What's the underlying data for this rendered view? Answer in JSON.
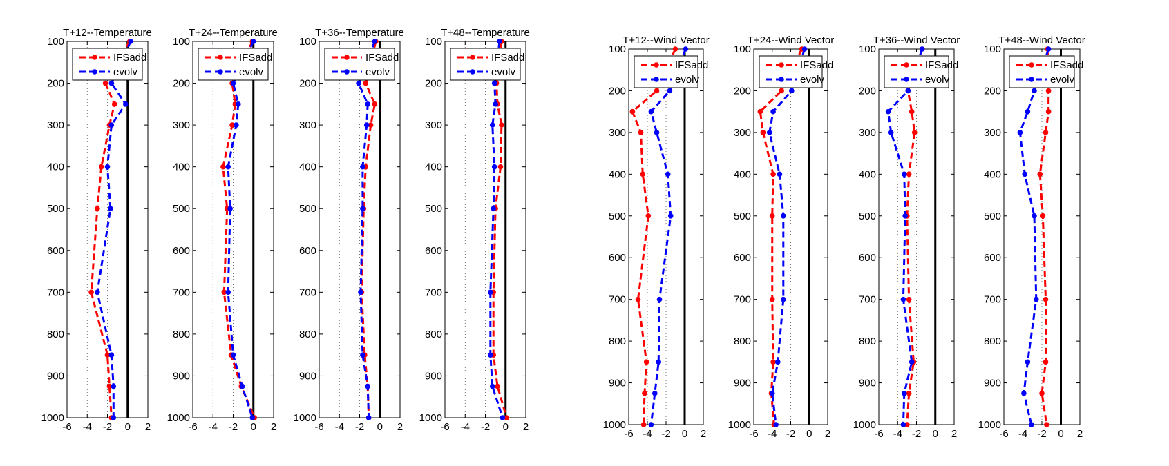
{
  "figure": {
    "background": "#ffffff",
    "colors": {
      "IFSadd": "#ff0000",
      "evolv": "#0000ff",
      "axis": "#000000",
      "grid": "#555555"
    },
    "line_style": "dashed",
    "marker": "filled-circle",
    "reference_line": 0
  },
  "chart_data": [
    {
      "type": "line",
      "title": "T+12--Temperature",
      "xlim": [
        -6,
        2
      ],
      "xticks": [
        -6,
        -4,
        -2,
        0,
        2
      ],
      "ylim": [
        100,
        1000
      ],
      "y_reversed": true,
      "yticks": [
        100,
        200,
        300,
        400,
        500,
        600,
        700,
        800,
        900,
        1000
      ],
      "legend_position": "top",
      "y": [
        100,
        200,
        250,
        300,
        400,
        500,
        700,
        850,
        925,
        1000
      ],
      "series": [
        {
          "name": "IFSadd",
          "color": "#ff0000",
          "values": [
            0.2,
            -2.2,
            -1.3,
            -1.8,
            -2.6,
            -3.0,
            -3.6,
            -2.0,
            -1.8,
            -1.6
          ]
        },
        {
          "name": "evolv",
          "color": "#0000ff",
          "values": [
            0.3,
            -1.6,
            -0.2,
            -1.6,
            -2.0,
            -1.7,
            -3.0,
            -1.6,
            -1.4,
            -1.4
          ]
        }
      ]
    },
    {
      "type": "line",
      "title": "T+24--Temperature",
      "xlim": [
        -6,
        2
      ],
      "xticks": [
        -6,
        -4,
        -2,
        0,
        2
      ],
      "ylim": [
        100,
        1000
      ],
      "y_reversed": true,
      "yticks": [
        100,
        200,
        300,
        400,
        500,
        600,
        700,
        800,
        900,
        1000
      ],
      "legend_position": "top",
      "y": [
        100,
        200,
        250,
        300,
        400,
        500,
        700,
        850,
        925,
        1000
      ],
      "series": [
        {
          "name": "IFSadd",
          "color": "#ff0000",
          "values": [
            -0.1,
            -2.1,
            -1.8,
            -2.1,
            -3.0,
            -2.6,
            -2.9,
            -2.2,
            -1.2,
            0.1
          ]
        },
        {
          "name": "evolv",
          "color": "#0000ff",
          "values": [
            0.0,
            -2.0,
            -1.5,
            -1.7,
            -2.5,
            -2.3,
            -2.5,
            -2.0,
            -1.1,
            -0.1
          ]
        }
      ]
    },
    {
      "type": "line",
      "title": "T+36--Temperature",
      "xlim": [
        -6,
        2
      ],
      "xticks": [
        -6,
        -4,
        -2,
        0,
        2
      ],
      "ylim": [
        100,
        1000
      ],
      "y_reversed": true,
      "yticks": [
        100,
        200,
        300,
        400,
        500,
        600,
        700,
        800,
        900,
        1000
      ],
      "legend_position": "top",
      "y": [
        100,
        200,
        250,
        300,
        400,
        500,
        700,
        850,
        925,
        1000
      ],
      "series": [
        {
          "name": "IFSadd",
          "color": "#ff0000",
          "values": [
            -0.4,
            -1.4,
            -0.5,
            -0.9,
            -1.4,
            -1.6,
            -1.8,
            -1.5,
            -1.2,
            -1.1
          ]
        },
        {
          "name": "evolv",
          "color": "#0000ff",
          "values": [
            -0.5,
            -2.1,
            -1.2,
            -1.3,
            -1.7,
            -1.7,
            -1.9,
            -1.7,
            -1.2,
            -1.1
          ]
        }
      ]
    },
    {
      "type": "line",
      "title": "T+48--Temperature",
      "xlim": [
        -6,
        2
      ],
      "xticks": [
        -6,
        -4,
        -2,
        0,
        2
      ],
      "ylim": [
        100,
        1000
      ],
      "y_reversed": true,
      "yticks": [
        100,
        200,
        300,
        400,
        500,
        600,
        700,
        800,
        900,
        1000
      ],
      "legend_position": "top",
      "y": [
        100,
        200,
        250,
        300,
        400,
        500,
        700,
        850,
        925,
        1000
      ],
      "series": [
        {
          "name": "IFSadd",
          "color": "#ff0000",
          "values": [
            -0.4,
            -0.9,
            -0.8,
            -0.4,
            -0.5,
            -1.0,
            -1.2,
            -1.2,
            -0.8,
            0.1
          ]
        },
        {
          "name": "evolv",
          "color": "#0000ff",
          "values": [
            -0.6,
            -1.1,
            -1.0,
            -1.3,
            -1.1,
            -1.2,
            -1.5,
            -1.5,
            -1.3,
            -0.3
          ]
        }
      ]
    },
    {
      "type": "line",
      "title": "T+12--Wind Vector",
      "xlim": [
        -6,
        2
      ],
      "xticks": [
        -6,
        -4,
        -2,
        0,
        2
      ],
      "ylim": [
        100,
        1000
      ],
      "y_reversed": true,
      "yticks": [
        100,
        200,
        300,
        400,
        500,
        600,
        700,
        800,
        900,
        1000
      ],
      "legend_position": "top",
      "y": [
        100,
        200,
        250,
        300,
        400,
        500,
        700,
        850,
        925,
        1000
      ],
      "series": [
        {
          "name": "IFSadd",
          "color": "#ff0000",
          "values": [
            -1.0,
            -3.0,
            -5.6,
            -4.7,
            -4.5,
            -3.9,
            -5.0,
            -4.1,
            -4.3,
            -4.4
          ]
        },
        {
          "name": "evolv",
          "color": "#0000ff",
          "values": [
            0.1,
            -1.6,
            -3.6,
            -3.0,
            -1.8,
            -1.5,
            -2.7,
            -2.8,
            -3.2,
            -3.6
          ]
        }
      ]
    },
    {
      "type": "line",
      "title": "T+24--Wind Vector",
      "xlim": [
        -6,
        2
      ],
      "xticks": [
        -6,
        -4,
        -2,
        0,
        2
      ],
      "ylim": [
        100,
        1000
      ],
      "y_reversed": true,
      "yticks": [
        100,
        200,
        300,
        400,
        500,
        600,
        700,
        800,
        900,
        1000
      ],
      "legend_position": "top",
      "y": [
        100,
        200,
        250,
        300,
        400,
        500,
        700,
        850,
        925,
        1000
      ],
      "series": [
        {
          "name": "IFSadd",
          "color": "#ff0000",
          "values": [
            -0.8,
            -3.0,
            -5.3,
            -5.0,
            -3.9,
            -4.0,
            -4.0,
            -3.9,
            -4.1,
            -3.8
          ]
        },
        {
          "name": "evolv",
          "color": "#0000ff",
          "values": [
            -0.5,
            -1.9,
            -3.9,
            -4.3,
            -3.2,
            -2.8,
            -2.8,
            -3.4,
            -4.0,
            -3.6
          ]
        }
      ]
    },
    {
      "type": "line",
      "title": "T+36--Wind Vector",
      "xlim": [
        -6,
        2
      ],
      "xticks": [
        -6,
        -4,
        -2,
        0,
        2
      ],
      "ylim": [
        100,
        1000
      ],
      "y_reversed": true,
      "yticks": [
        100,
        200,
        300,
        400,
        500,
        600,
        700,
        800,
        900,
        1000
      ],
      "legend_position": "top",
      "y": [
        100,
        200,
        250,
        300,
        400,
        500,
        700,
        850,
        925,
        1000
      ],
      "series": [
        {
          "name": "IFSadd",
          "color": "#ff0000",
          "values": [
            -1.4,
            -2.9,
            -2.5,
            -2.2,
            -2.8,
            -3.0,
            -2.8,
            -2.3,
            -2.8,
            -3.0
          ]
        },
        {
          "name": "evolv",
          "color": "#0000ff",
          "values": [
            -1.4,
            -2.9,
            -5.0,
            -4.7,
            -3.3,
            -3.2,
            -3.4,
            -2.5,
            -3.3,
            -3.4
          ]
        }
      ]
    },
    {
      "type": "line",
      "title": "T+48--Wind Vector",
      "xlim": [
        -6,
        2
      ],
      "xticks": [
        -6,
        -4,
        -2,
        0,
        2
      ],
      "ylim": [
        100,
        1000
      ],
      "y_reversed": true,
      "yticks": [
        100,
        200,
        300,
        400,
        500,
        600,
        700,
        800,
        900,
        1000
      ],
      "legend_position": "top",
      "y": [
        100,
        200,
        250,
        300,
        400,
        500,
        700,
        850,
        925,
        1000
      ],
      "series": [
        {
          "name": "IFSadd",
          "color": "#ff0000",
          "values": [
            -1.4,
            -1.3,
            -1.3,
            -1.6,
            -2.2,
            -1.9,
            -1.6,
            -1.6,
            -2.0,
            -1.5
          ]
        },
        {
          "name": "evolv",
          "color": "#0000ff",
          "values": [
            -1.3,
            -2.8,
            -3.5,
            -4.3,
            -3.8,
            -2.8,
            -2.6,
            -3.5,
            -3.9,
            -3.1
          ]
        }
      ]
    }
  ]
}
